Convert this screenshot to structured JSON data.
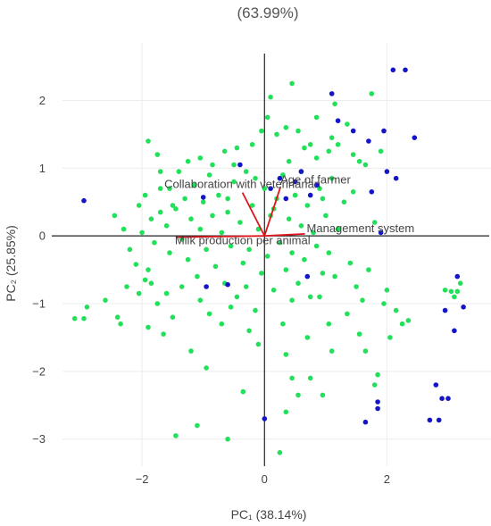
{
  "chart_data": {
    "type": "scatter",
    "top_text": "(63.99%)",
    "xlabel": "PC₁ (38.14%)",
    "ylabel": "PC₂ (25.85%)",
    "xlim": [
      -3.3,
      3.7
    ],
    "ylim": [
      -3.4,
      2.85
    ],
    "x_ticks": [
      -2,
      0,
      2
    ],
    "y_ticks": [
      2,
      1,
      0,
      -1,
      -2,
      -3
    ],
    "x_tick_labels": [
      "−2",
      "0",
      "2"
    ],
    "y_tick_labels": [
      "2",
      "1",
      "0",
      "−1",
      "−2",
      "−3"
    ],
    "grid": true,
    "colors": {
      "green": "#22e05a",
      "blue": "#1515c8",
      "loading": "#e0151b",
      "grid": "#ececec",
      "zero": "#222222"
    },
    "loadings": [
      {
        "name": "Collaboration with veterinarian",
        "x": -0.36,
        "y": 0.64
      },
      {
        "name": "Age of farmer",
        "x": 0.26,
        "y": 0.72
      },
      {
        "name": "Management system",
        "x": 0.66,
        "y": 0.03
      },
      {
        "name": "Milk production per animal",
        "x": -1.45,
        "y": -0.02
      }
    ],
    "series": [
      {
        "color": "green",
        "points": [
          [
            -3.1,
            -1.22
          ],
          [
            -2.95,
            -1.22
          ],
          [
            -2.9,
            -1.05
          ],
          [
            -2.6,
            -0.95
          ],
          [
            -2.4,
            -1.2
          ],
          [
            -2.35,
            -1.3
          ],
          [
            -2.25,
            -0.75
          ],
          [
            -2.1,
            -0.42
          ],
          [
            -2.05,
            -0.85
          ],
          [
            -1.9,
            -0.5
          ],
          [
            -1.85,
            -0.7
          ],
          [
            -1.75,
            -1.0
          ],
          [
            -1.65,
            -1.45
          ],
          [
            -1.5,
            -1.2
          ],
          [
            -1.45,
            -2.95
          ],
          [
            -1.2,
            -1.7
          ],
          [
            -1.1,
            -2.8
          ],
          [
            -0.95,
            -1.95
          ],
          [
            -0.6,
            -3.0
          ],
          [
            -0.35,
            -2.3
          ],
          [
            0.25,
            -3.2
          ],
          [
            0.35,
            -2.6
          ],
          [
            0.45,
            -2.1
          ],
          [
            0.55,
            -2.35
          ],
          [
            0.75,
            -2.1
          ],
          [
            0.95,
            -2.35
          ],
          [
            1.1,
            -1.7
          ],
          [
            0.7,
            -1.5
          ],
          [
            0.35,
            -1.75
          ],
          [
            0.9,
            -0.9
          ],
          [
            1.05,
            -1.3
          ],
          [
            1.35,
            -1.15
          ],
          [
            1.55,
            -1.45
          ],
          [
            1.65,
            -1.7
          ],
          [
            1.8,
            -2.2
          ],
          [
            1.85,
            -2.05
          ],
          [
            1.95,
            -1.0
          ],
          [
            2.0,
            -0.8
          ],
          [
            2.05,
            -1.5
          ],
          [
            2.15,
            -1.1
          ],
          [
            2.25,
            -1.3
          ],
          [
            2.35,
            -1.25
          ],
          [
            2.95,
            -0.8
          ],
          [
            3.05,
            -0.82
          ],
          [
            3.15,
            -0.82
          ],
          [
            3.2,
            -0.7
          ],
          [
            3.1,
            -0.9
          ],
          [
            -1.9,
            1.4
          ],
          [
            -1.75,
            1.2
          ],
          [
            -1.7,
            0.95
          ],
          [
            -1.55,
            0.7
          ],
          [
            -1.4,
            0.95
          ],
          [
            -1.25,
            1.1
          ],
          [
            -1.05,
            1.15
          ],
          [
            -0.85,
            1.05
          ],
          [
            -0.65,
            1.25
          ],
          [
            -0.5,
            1.05
          ],
          [
            -0.2,
            1.35
          ],
          [
            -0.05,
            1.55
          ],
          [
            0.05,
            1.75
          ],
          [
            0.1,
            2.05
          ],
          [
            0.2,
            1.5
          ],
          [
            0.35,
            1.6
          ],
          [
            0.45,
            2.25
          ],
          [
            0.55,
            1.55
          ],
          [
            0.65,
            1.3
          ],
          [
            0.75,
            1.35
          ],
          [
            0.85,
            1.75
          ],
          [
            1.05,
            1.25
          ],
          [
            1.1,
            1.45
          ],
          [
            1.15,
            1.95
          ],
          [
            1.2,
            1.35
          ],
          [
            1.35,
            1.65
          ],
          [
            1.45,
            1.2
          ],
          [
            1.55,
            1.1
          ],
          [
            1.65,
            1.05
          ],
          [
            1.75,
            2.1
          ],
          [
            1.9,
            1.25
          ],
          [
            -2.45,
            0.3
          ],
          [
            -2.3,
            0.1
          ],
          [
            -2.2,
            -0.2
          ],
          [
            -2.05,
            0.45
          ],
          [
            -1.95,
            0.6
          ],
          [
            -1.85,
            0.25
          ],
          [
            -1.8,
            -0.1
          ],
          [
            -1.7,
            0.35
          ],
          [
            -1.6,
            0.15
          ],
          [
            -1.55,
            -0.25
          ],
          [
            -1.45,
            0.4
          ],
          [
            -1.35,
            -0.05
          ],
          [
            -1.3,
            0.55
          ],
          [
            -1.25,
            -0.35
          ],
          [
            -1.2,
            0.25
          ],
          [
            -1.15,
            0.75
          ],
          [
            -1.1,
            -0.6
          ],
          [
            -1.05,
            0.1
          ],
          [
            -1.0,
            0.5
          ],
          [
            -0.95,
            -0.2
          ],
          [
            -0.9,
            0.9
          ],
          [
            -0.85,
            0.3
          ],
          [
            -0.8,
            -0.45
          ],
          [
            -0.75,
            0.6
          ],
          [
            -0.7,
            0.05
          ],
          [
            -0.65,
            -0.7
          ],
          [
            -0.6,
            0.35
          ],
          [
            -0.55,
            -0.15
          ],
          [
            -0.5,
            0.8
          ],
          [
            -0.45,
            -0.9
          ],
          [
            -0.4,
            0.2
          ],
          [
            -0.35,
            -0.4
          ],
          [
            -0.3,
            0.95
          ],
          [
            -0.25,
            -0.2
          ],
          [
            -0.2,
            0.45
          ],
          [
            -0.15,
            -1.1
          ],
          [
            -0.1,
            0.1
          ],
          [
            -0.05,
            -0.55
          ],
          [
            0.0,
            0.7
          ],
          [
            0.05,
            -0.3
          ],
          [
            0.1,
            0.3
          ],
          [
            0.15,
            -0.8
          ],
          [
            0.2,
            0.55
          ],
          [
            0.25,
            -0.1
          ],
          [
            0.3,
            0.9
          ],
          [
            0.35,
            -0.5
          ],
          [
            0.4,
            0.25
          ],
          [
            0.45,
            -0.25
          ],
          [
            0.5,
            0.6
          ],
          [
            0.55,
            -0.7
          ],
          [
            0.6,
            0.15
          ],
          [
            0.65,
            -0.35
          ],
          [
            0.7,
            0.45
          ],
          [
            0.75,
            -0.9
          ],
          [
            0.8,
            0.05
          ],
          [
            0.85,
            -0.15
          ],
          [
            0.9,
            0.7
          ],
          [
            0.95,
            -0.55
          ],
          [
            1.0,
            0.3
          ],
          [
            1.05,
            -0.25
          ],
          [
            1.1,
            0.85
          ],
          [
            1.15,
            -0.6
          ],
          [
            1.2,
            0.1
          ],
          [
            1.3,
            0.5
          ],
          [
            1.4,
            -0.4
          ],
          [
            1.5,
            -0.75
          ],
          [
            1.6,
            -0.95
          ],
          [
            1.7,
            -0.5
          ],
          [
            1.8,
            0.2
          ],
          [
            1.45,
            0.65
          ],
          [
            -1.95,
            -0.65
          ],
          [
            -1.6,
            -0.85
          ],
          [
            -1.35,
            -0.75
          ],
          [
            -1.05,
            -0.95
          ],
          [
            -0.9,
            -1.15
          ],
          [
            -0.7,
            -1.3
          ],
          [
            -0.55,
            -1.05
          ],
          [
            -0.25,
            -1.4
          ],
          [
            -0.1,
            -1.6
          ],
          [
            0.3,
            -1.3
          ],
          [
            -1.9,
            -1.35
          ],
          [
            -1.7,
            0.7
          ],
          [
            -1.5,
            0.45
          ],
          [
            -0.45,
            1.3
          ],
          [
            -0.15,
            0.85
          ],
          [
            0.4,
            1.1
          ],
          [
            0.6,
            0.95
          ],
          [
            0.85,
            1.15
          ],
          [
            -2.0,
            0.05
          ],
          [
            -0.6,
            0.55
          ],
          [
            0.15,
            0.4
          ],
          [
            0.95,
            0.55
          ],
          [
            -0.3,
            -0.75
          ],
          [
            0.45,
            -0.95
          ]
        ]
      },
      {
        "color": "blue",
        "points": [
          [
            -2.95,
            0.52
          ],
          [
            -1.0,
            0.57
          ],
          [
            -0.6,
            -0.72
          ],
          [
            -0.4,
            1.05
          ],
          [
            0.1,
            0.7
          ],
          [
            0.25,
            0.85
          ],
          [
            0.5,
            0.8
          ],
          [
            0.6,
            0.95
          ],
          [
            0.75,
            0.6
          ],
          [
            0.85,
            0.75
          ],
          [
            1.1,
            2.1
          ],
          [
            1.2,
            1.7
          ],
          [
            1.45,
            1.55
          ],
          [
            1.7,
            1.4
          ],
          [
            1.95,
            1.55
          ],
          [
            2.0,
            0.95
          ],
          [
            2.15,
            0.85
          ],
          [
            2.1,
            2.45
          ],
          [
            2.3,
            2.45
          ],
          [
            2.45,
            1.45
          ],
          [
            1.75,
            0.65
          ],
          [
            1.9,
            0.05
          ],
          [
            1.85,
            -2.55
          ],
          [
            1.65,
            -2.75
          ],
          [
            1.85,
            -2.45
          ],
          [
            2.7,
            -2.72
          ],
          [
            2.85,
            -2.72
          ],
          [
            2.8,
            -2.2
          ],
          [
            2.9,
            -2.4
          ],
          [
            3.0,
            -2.4
          ],
          [
            2.95,
            -1.1
          ],
          [
            3.1,
            -1.4
          ],
          [
            3.15,
            -0.6
          ],
          [
            3.25,
            -1.05
          ],
          [
            0.0,
            -2.7
          ],
          [
            -0.95,
            -0.75
          ],
          [
            0.35,
            0.55
          ],
          [
            0.7,
            -0.6
          ]
        ]
      }
    ]
  }
}
